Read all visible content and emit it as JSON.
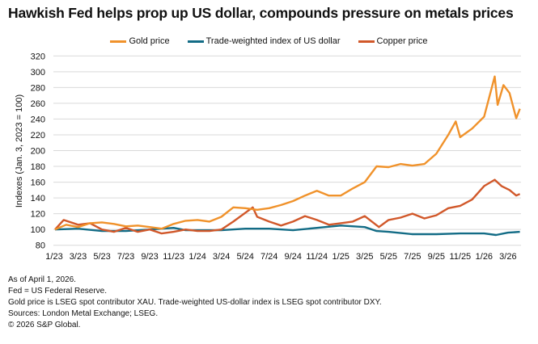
{
  "chart_data": {
    "type": "line",
    "title": "Hawkish Fed helps prop up US dollar, compounds pressure on metals prices",
    "ylabel": "Indexes (Jan. 3, 2023 = 100)",
    "xlabel": "",
    "ylim": [
      80,
      320
    ],
    "yticks": [
      80,
      100,
      120,
      140,
      160,
      180,
      200,
      220,
      240,
      260,
      280,
      300,
      320
    ],
    "xtick_labels": [
      "1/23",
      "3/23",
      "5/23",
      "7/23",
      "9/23",
      "11/23",
      "1/24",
      "3/24",
      "5/24",
      "7/24",
      "9/24",
      "11/24",
      "1/25",
      "3/25",
      "5/25",
      "7/25",
      "9/25",
      "11/25",
      "1/26",
      "3/26"
    ],
    "xtick_dates": [
      "2023-01-01",
      "2023-03-01",
      "2023-05-01",
      "2023-07-01",
      "2023-09-01",
      "2023-11-01",
      "2024-01-01",
      "2024-03-01",
      "2024-05-01",
      "2024-07-01",
      "2024-09-01",
      "2024-11-01",
      "2025-01-01",
      "2025-03-01",
      "2025-05-01",
      "2025-07-01",
      "2025-09-01",
      "2025-11-01",
      "2026-01-01",
      "2026-03-01"
    ],
    "grid": true,
    "legend_position": "top",
    "series": [
      {
        "name": "Gold price",
        "color": "#F0922B",
        "points": [
          [
            "2023-01-03",
            100
          ],
          [
            "2023-02-01",
            106
          ],
          [
            "2023-03-01",
            103
          ],
          [
            "2023-04-01",
            108
          ],
          [
            "2023-05-01",
            109
          ],
          [
            "2023-06-01",
            107
          ],
          [
            "2023-07-01",
            104
          ],
          [
            "2023-08-01",
            105
          ],
          [
            "2023-09-01",
            103
          ],
          [
            "2023-10-01",
            101
          ],
          [
            "2023-11-01",
            107
          ],
          [
            "2023-12-01",
            111
          ],
          [
            "2024-01-01",
            112
          ],
          [
            "2024-02-01",
            110
          ],
          [
            "2024-03-01",
            116
          ],
          [
            "2024-04-01",
            128
          ],
          [
            "2024-05-01",
            127
          ],
          [
            "2024-06-01",
            125
          ],
          [
            "2024-07-01",
            127
          ],
          [
            "2024-08-01",
            131
          ],
          [
            "2024-09-01",
            136
          ],
          [
            "2024-10-01",
            143
          ],
          [
            "2024-11-01",
            149
          ],
          [
            "2024-12-01",
            143
          ],
          [
            "2025-01-01",
            143
          ],
          [
            "2025-02-01",
            152
          ],
          [
            "2025-03-01",
            160
          ],
          [
            "2025-04-01",
            180
          ],
          [
            "2025-05-01",
            179
          ],
          [
            "2025-06-01",
            183
          ],
          [
            "2025-07-01",
            181
          ],
          [
            "2025-08-01",
            183
          ],
          [
            "2025-09-01",
            196
          ],
          [
            "2025-10-01",
            220
          ],
          [
            "2025-10-20",
            237
          ],
          [
            "2025-11-01",
            217
          ],
          [
            "2025-12-01",
            228
          ],
          [
            "2026-01-01",
            243
          ],
          [
            "2026-01-28",
            294
          ],
          [
            "2026-02-05",
            258
          ],
          [
            "2026-02-20",
            283
          ],
          [
            "2026-03-05",
            273
          ],
          [
            "2026-03-22",
            241
          ],
          [
            "2026-04-01",
            253
          ]
        ]
      },
      {
        "name": "Trade-weighted index of US dollar",
        "color": "#136C86",
        "points": [
          [
            "2023-01-03",
            100
          ],
          [
            "2023-03-01",
            101
          ],
          [
            "2023-05-01",
            98
          ],
          [
            "2023-07-01",
            98
          ],
          [
            "2023-09-01",
            100
          ],
          [
            "2023-11-01",
            102
          ],
          [
            "2023-12-01",
            99
          ],
          [
            "2024-01-01",
            99
          ],
          [
            "2024-03-01",
            99
          ],
          [
            "2024-05-01",
            101
          ],
          [
            "2024-07-01",
            101
          ],
          [
            "2024-09-01",
            99
          ],
          [
            "2024-11-01",
            102
          ],
          [
            "2025-01-01",
            105
          ],
          [
            "2025-03-01",
            103
          ],
          [
            "2025-04-01",
            98
          ],
          [
            "2025-05-01",
            97
          ],
          [
            "2025-07-01",
            94
          ],
          [
            "2025-09-01",
            94
          ],
          [
            "2025-11-01",
            95
          ],
          [
            "2026-01-01",
            95
          ],
          [
            "2026-02-01",
            93
          ],
          [
            "2026-03-01",
            96
          ],
          [
            "2026-04-01",
            97
          ]
        ]
      },
      {
        "name": "Copper price",
        "color": "#D1582A",
        "points": [
          [
            "2023-01-03",
            100
          ],
          [
            "2023-01-25",
            112
          ],
          [
            "2023-03-01",
            106
          ],
          [
            "2023-04-01",
            108
          ],
          [
            "2023-05-01",
            100
          ],
          [
            "2023-06-01",
            97
          ],
          [
            "2023-07-01",
            102
          ],
          [
            "2023-08-01",
            97
          ],
          [
            "2023-09-01",
            100
          ],
          [
            "2023-10-01",
            95
          ],
          [
            "2023-11-01",
            97
          ],
          [
            "2023-12-01",
            100
          ],
          [
            "2024-01-01",
            98
          ],
          [
            "2024-02-01",
            98
          ],
          [
            "2024-03-01",
            100
          ],
          [
            "2024-04-01",
            110
          ],
          [
            "2024-05-20",
            128
          ],
          [
            "2024-06-01",
            116
          ],
          [
            "2024-07-01",
            110
          ],
          [
            "2024-08-01",
            105
          ],
          [
            "2024-09-01",
            110
          ],
          [
            "2024-10-01",
            117
          ],
          [
            "2024-11-01",
            112
          ],
          [
            "2024-12-01",
            106
          ],
          [
            "2025-01-01",
            108
          ],
          [
            "2025-02-01",
            110
          ],
          [
            "2025-03-01",
            117
          ],
          [
            "2025-04-07",
            103
          ],
          [
            "2025-05-01",
            112
          ],
          [
            "2025-06-01",
            115
          ],
          [
            "2025-07-01",
            120
          ],
          [
            "2025-08-01",
            114
          ],
          [
            "2025-09-01",
            118
          ],
          [
            "2025-10-01",
            127
          ],
          [
            "2025-11-01",
            130
          ],
          [
            "2025-12-01",
            138
          ],
          [
            "2026-01-01",
            155
          ],
          [
            "2026-01-28",
            163
          ],
          [
            "2026-02-15",
            155
          ],
          [
            "2026-03-05",
            150
          ],
          [
            "2026-03-22",
            143
          ],
          [
            "2026-04-01",
            145
          ]
        ]
      }
    ]
  },
  "notes": [
    "As of April 1, 2026.",
    "Fed = US Federal Reserve.",
    "Gold price is LSEG spot contributor XAU. Trade-weighted US-dollar index is LSEG spot contributor DXY.",
    "Sources: London Metal Exchange; LSEG.",
    "© 2026 S&P Global."
  ]
}
